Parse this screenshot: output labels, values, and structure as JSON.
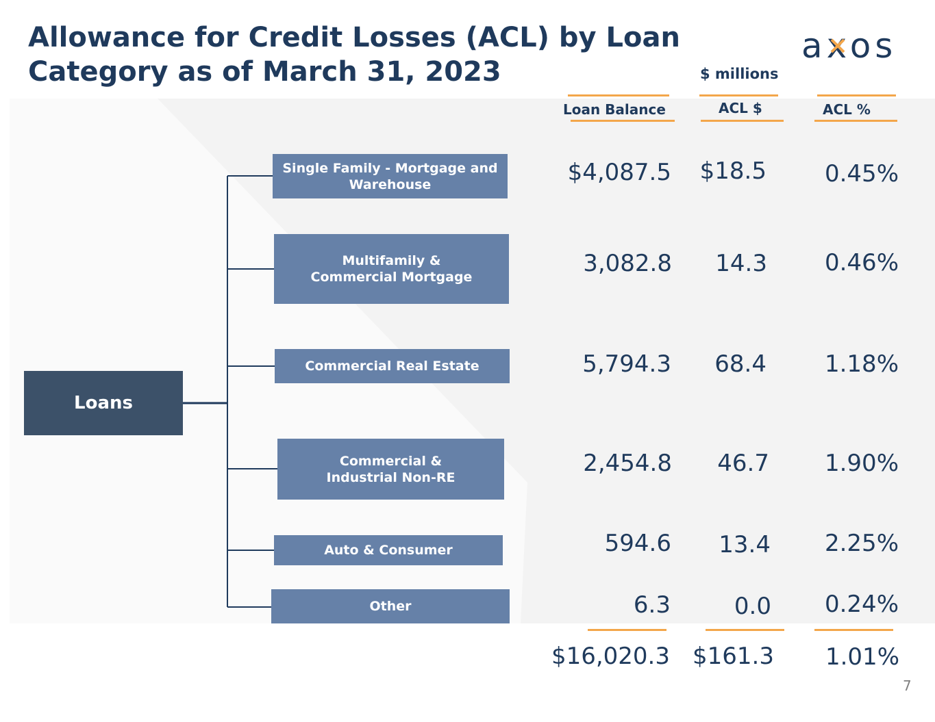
{
  "header": {
    "title": "Allowance for Credit Losses (ACL) by Loan Category as of March 31, 2023",
    "logo_text": "axos",
    "units": "$ millions"
  },
  "columns": {
    "loan_balance": "Loan Balance",
    "acl_dollars": "ACL $",
    "acl_percent": "ACL %"
  },
  "root": {
    "label": "Loans"
  },
  "categories": [
    {
      "label": "Single Family - Mortgage and Warehouse",
      "loan_balance": "$4,087.5",
      "acl_dollars": "$18.5",
      "acl_percent": "0.45%"
    },
    {
      "label": "Multifamily & Commercial Mortgage",
      "loan_balance": "3,082.8",
      "acl_dollars": "14.3",
      "acl_percent": "0.46%"
    },
    {
      "label": "Commercial Real Estate",
      "loan_balance": "5,794.3",
      "acl_dollars": "68.4",
      "acl_percent": "1.18%"
    },
    {
      "label": "Commercial & Industrial Non-RE",
      "loan_balance": "2,454.8",
      "acl_dollars": "46.7",
      "acl_percent": "1.90%"
    },
    {
      "label": "Auto & Consumer",
      "loan_balance": "594.6",
      "acl_dollars": "13.4",
      "acl_percent": "2.25%"
    },
    {
      "label": "Other",
      "loan_balance": "6.3",
      "acl_dollars": "0.0",
      "acl_percent": "0.24%"
    }
  ],
  "totals": {
    "loan_balance": "$16,020.3",
    "acl_dollars": "$161.3",
    "acl_percent": "1.01%"
  },
  "page_number": "7",
  "colors": {
    "navy": "#1f3a5c",
    "box_blue": "#6681a8",
    "root_dark": "#3c5169",
    "accent_orange": "#f3a64a",
    "panel_gray": "#f3f3f3"
  }
}
